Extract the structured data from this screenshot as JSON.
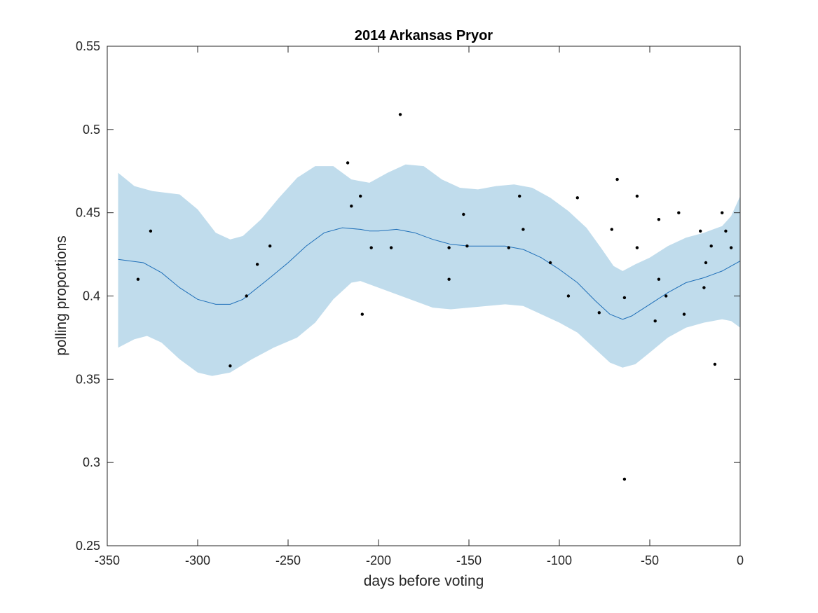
{
  "chart_data": {
    "type": "scatter",
    "title": "2014 Arkansas Pryor",
    "xlabel": "days before voting",
    "ylabel": "polling proportions",
    "xlim": [
      -350,
      0
    ],
    "ylim": [
      0.25,
      0.55
    ],
    "xticks": [
      -350,
      -300,
      -250,
      -200,
      -150,
      -100,
      -50,
      0
    ],
    "yticks": [
      0.25,
      0.3,
      0.35,
      0.4,
      0.45,
      0.5,
      0.55
    ],
    "xtick_labels": [
      "-350",
      "-300",
      "-250",
      "-200",
      "-150",
      "-100",
      "-50",
      "0"
    ],
    "ytick_labels": [
      "0.25",
      "0.3",
      "0.35",
      "0.4",
      "0.45",
      "0.5",
      "0.55"
    ],
    "grid": false,
    "colors": {
      "band": "#c0dcec",
      "mean_line": "#1f6fb8",
      "points": "#000000",
      "axes": "#262626"
    },
    "points": [
      {
        "x": -333,
        "y": 0.41
      },
      {
        "x": -326,
        "y": 0.439
      },
      {
        "x": -282,
        "y": 0.358
      },
      {
        "x": -273,
        "y": 0.4
      },
      {
        "x": -267,
        "y": 0.419
      },
      {
        "x": -260,
        "y": 0.43
      },
      {
        "x": -217,
        "y": 0.48
      },
      {
        "x": -215,
        "y": 0.454
      },
      {
        "x": -210,
        "y": 0.46
      },
      {
        "x": -209,
        "y": 0.389
      },
      {
        "x": -204,
        "y": 0.429
      },
      {
        "x": -193,
        "y": 0.429
      },
      {
        "x": -188,
        "y": 0.509
      },
      {
        "x": -161,
        "y": 0.429
      },
      {
        "x": -161,
        "y": 0.41
      },
      {
        "x": -153,
        "y": 0.449
      },
      {
        "x": -151,
        "y": 0.43
      },
      {
        "x": -128,
        "y": 0.429
      },
      {
        "x": -122,
        "y": 0.46
      },
      {
        "x": -120,
        "y": 0.44
      },
      {
        "x": -105,
        "y": 0.42
      },
      {
        "x": -95,
        "y": 0.4
      },
      {
        "x": -90,
        "y": 0.459
      },
      {
        "x": -78,
        "y": 0.39
      },
      {
        "x": -71,
        "y": 0.44
      },
      {
        "x": -68,
        "y": 0.47
      },
      {
        "x": -64,
        "y": 0.29
      },
      {
        "x": -64,
        "y": 0.399
      },
      {
        "x": -57,
        "y": 0.46
      },
      {
        "x": -57,
        "y": 0.429
      },
      {
        "x": -47,
        "y": 0.385
      },
      {
        "x": -45,
        "y": 0.446
      },
      {
        "x": -45,
        "y": 0.41
      },
      {
        "x": -41,
        "y": 0.4
      },
      {
        "x": -34,
        "y": 0.45
      },
      {
        "x": -31,
        "y": 0.389
      },
      {
        "x": -22,
        "y": 0.439
      },
      {
        "x": -20,
        "y": 0.405
      },
      {
        "x": -19,
        "y": 0.42
      },
      {
        "x": -16,
        "y": 0.43
      },
      {
        "x": -14,
        "y": 0.359
      },
      {
        "x": -10,
        "y": 0.45
      },
      {
        "x": -8,
        "y": 0.439
      },
      {
        "x": -5,
        "y": 0.429
      }
    ],
    "mean_curve": [
      {
        "x": -344,
        "y": 0.422
      },
      {
        "x": -330,
        "y": 0.42
      },
      {
        "x": -320,
        "y": 0.414
      },
      {
        "x": -310,
        "y": 0.405
      },
      {
        "x": -300,
        "y": 0.398
      },
      {
        "x": -290,
        "y": 0.395
      },
      {
        "x": -282,
        "y": 0.395
      },
      {
        "x": -275,
        "y": 0.398
      },
      {
        "x": -260,
        "y": 0.411
      },
      {
        "x": -250,
        "y": 0.42
      },
      {
        "x": -240,
        "y": 0.43
      },
      {
        "x": -230,
        "y": 0.438
      },
      {
        "x": -220,
        "y": 0.441
      },
      {
        "x": -210,
        "y": 0.44
      },
      {
        "x": -205,
        "y": 0.439
      },
      {
        "x": -200,
        "y": 0.439
      },
      {
        "x": -190,
        "y": 0.44
      },
      {
        "x": -180,
        "y": 0.438
      },
      {
        "x": -170,
        "y": 0.434
      },
      {
        "x": -160,
        "y": 0.431
      },
      {
        "x": -150,
        "y": 0.43
      },
      {
        "x": -140,
        "y": 0.43
      },
      {
        "x": -130,
        "y": 0.43
      },
      {
        "x": -120,
        "y": 0.428
      },
      {
        "x": -110,
        "y": 0.423
      },
      {
        "x": -100,
        "y": 0.416
      },
      {
        "x": -90,
        "y": 0.408
      },
      {
        "x": -80,
        "y": 0.397
      },
      {
        "x": -72,
        "y": 0.389
      },
      {
        "x": -65,
        "y": 0.386
      },
      {
        "x": -60,
        "y": 0.388
      },
      {
        "x": -50,
        "y": 0.395
      },
      {
        "x": -40,
        "y": 0.402
      },
      {
        "x": -30,
        "y": 0.408
      },
      {
        "x": -20,
        "y": 0.411
      },
      {
        "x": -10,
        "y": 0.415
      },
      {
        "x": 0,
        "y": 0.421
      }
    ],
    "upper_band": [
      {
        "x": -344,
        "y": 0.474
      },
      {
        "x": -335,
        "y": 0.466
      },
      {
        "x": -325,
        "y": 0.463
      },
      {
        "x": -310,
        "y": 0.461
      },
      {
        "x": -300,
        "y": 0.452
      },
      {
        "x": -290,
        "y": 0.438
      },
      {
        "x": -282,
        "y": 0.434
      },
      {
        "x": -275,
        "y": 0.436
      },
      {
        "x": -265,
        "y": 0.446
      },
      {
        "x": -255,
        "y": 0.459
      },
      {
        "x": -245,
        "y": 0.471
      },
      {
        "x": -235,
        "y": 0.478
      },
      {
        "x": -225,
        "y": 0.478
      },
      {
        "x": -215,
        "y": 0.47
      },
      {
        "x": -205,
        "y": 0.468
      },
      {
        "x": -195,
        "y": 0.474
      },
      {
        "x": -185,
        "y": 0.479
      },
      {
        "x": -175,
        "y": 0.478
      },
      {
        "x": -165,
        "y": 0.47
      },
      {
        "x": -155,
        "y": 0.465
      },
      {
        "x": -145,
        "y": 0.464
      },
      {
        "x": -135,
        "y": 0.466
      },
      {
        "x": -125,
        "y": 0.467
      },
      {
        "x": -115,
        "y": 0.465
      },
      {
        "x": -105,
        "y": 0.459
      },
      {
        "x": -95,
        "y": 0.451
      },
      {
        "x": -85,
        "y": 0.441
      },
      {
        "x": -77,
        "y": 0.429
      },
      {
        "x": -70,
        "y": 0.418
      },
      {
        "x": -65,
        "y": 0.415
      },
      {
        "x": -58,
        "y": 0.419
      },
      {
        "x": -50,
        "y": 0.423
      },
      {
        "x": -40,
        "y": 0.43
      },
      {
        "x": -30,
        "y": 0.435
      },
      {
        "x": -20,
        "y": 0.438
      },
      {
        "x": -10,
        "y": 0.442
      },
      {
        "x": -5,
        "y": 0.448
      },
      {
        "x": 0,
        "y": 0.46
      }
    ],
    "lower_band": [
      {
        "x": -344,
        "y": 0.369
      },
      {
        "x": -335,
        "y": 0.374
      },
      {
        "x": -328,
        "y": 0.376
      },
      {
        "x": -320,
        "y": 0.372
      },
      {
        "x": -310,
        "y": 0.362
      },
      {
        "x": -300,
        "y": 0.354
      },
      {
        "x": -292,
        "y": 0.352
      },
      {
        "x": -282,
        "y": 0.354
      },
      {
        "x": -270,
        "y": 0.362
      },
      {
        "x": -258,
        "y": 0.369
      },
      {
        "x": -245,
        "y": 0.375
      },
      {
        "x": -235,
        "y": 0.384
      },
      {
        "x": -225,
        "y": 0.398
      },
      {
        "x": -215,
        "y": 0.408
      },
      {
        "x": -210,
        "y": 0.409
      },
      {
        "x": -200,
        "y": 0.405
      },
      {
        "x": -190,
        "y": 0.401
      },
      {
        "x": -180,
        "y": 0.397
      },
      {
        "x": -170,
        "y": 0.393
      },
      {
        "x": -160,
        "y": 0.392
      },
      {
        "x": -150,
        "y": 0.393
      },
      {
        "x": -140,
        "y": 0.394
      },
      {
        "x": -130,
        "y": 0.395
      },
      {
        "x": -120,
        "y": 0.394
      },
      {
        "x": -110,
        "y": 0.389
      },
      {
        "x": -100,
        "y": 0.384
      },
      {
        "x": -90,
        "y": 0.378
      },
      {
        "x": -80,
        "y": 0.368
      },
      {
        "x": -72,
        "y": 0.36
      },
      {
        "x": -65,
        "y": 0.357
      },
      {
        "x": -58,
        "y": 0.359
      },
      {
        "x": -50,
        "y": 0.366
      },
      {
        "x": -40,
        "y": 0.375
      },
      {
        "x": -30,
        "y": 0.381
      },
      {
        "x": -20,
        "y": 0.384
      },
      {
        "x": -10,
        "y": 0.386
      },
      {
        "x": -5,
        "y": 0.385
      },
      {
        "x": 0,
        "y": 0.381
      }
    ]
  }
}
